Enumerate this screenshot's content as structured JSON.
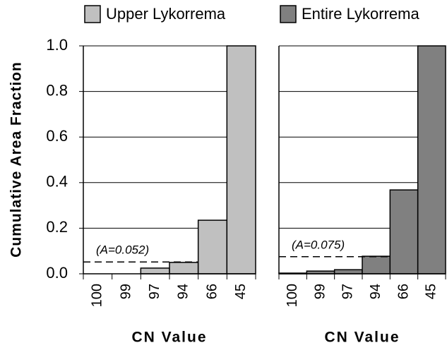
{
  "chart_data": [
    {
      "type": "bar",
      "title": "Upper Lykorrema",
      "ylabel": "Cumulative Area Fraction",
      "xlabel": "CN Value",
      "categories": [
        "100",
        "99",
        "97",
        "94",
        "66",
        "45"
      ],
      "values": [
        0,
        0,
        0.025,
        0.05,
        0.235,
        1.0
      ],
      "color": "#c0c0c0",
      "ylim": [
        0,
        1
      ],
      "yticks": [
        {
          "value": 0,
          "label": "0.0"
        },
        0.2,
        0.4,
        0.6,
        0.8,
        {
          "value": 1,
          "label": "1.0"
        }
      ],
      "grid": true,
      "annotation": {
        "label": "(A=0.052)",
        "value": 0.052
      }
    },
    {
      "type": "bar",
      "title": "Entire Lykorrema",
      "xlabel": "CN Value",
      "categories": [
        "100",
        "99",
        "97",
        "94",
        "66",
        "45"
      ],
      "values": [
        0.003,
        0.012,
        0.018,
        0.077,
        0.368,
        1.0
      ],
      "color": "#808080",
      "ylim": [
        0,
        1
      ],
      "yticks": [
        0,
        0.2,
        0.4,
        0.6,
        0.8,
        1
      ],
      "grid": true,
      "annotation": {
        "label": "(A=0.075)",
        "value": 0.075
      }
    }
  ]
}
